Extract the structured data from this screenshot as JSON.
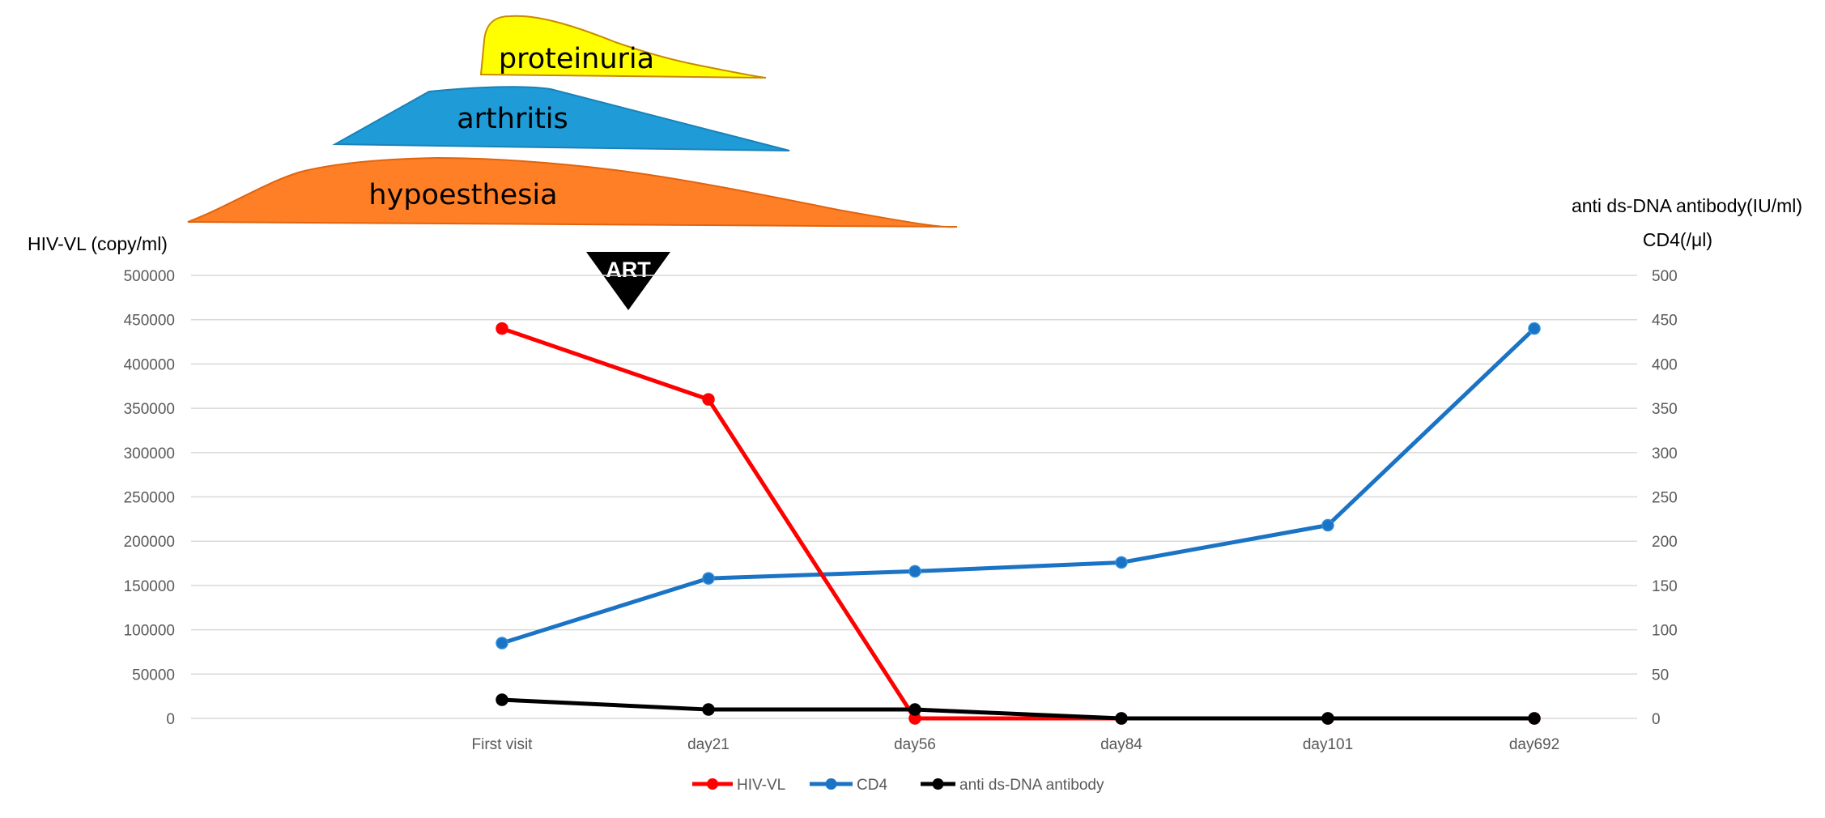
{
  "chart_data": {
    "type": "line",
    "categories": [
      "First visit",
      "day21",
      "day56",
      "day84",
      "day101",
      "day692"
    ],
    "left_axis": {
      "label": "HIV-VL (copy/ml)",
      "ylim": [
        0,
        500000
      ],
      "ticks": [
        "0",
        "50000",
        "100000",
        "150000",
        "200000",
        "250000",
        "300000",
        "350000",
        "400000",
        "450000",
        "500000"
      ]
    },
    "right_axis": {
      "label_line1": "anti ds-DNA antibody(IU/ml)",
      "label_line2": "CD4(/μl)",
      "ylim": [
        0,
        500
      ],
      "ticks": [
        "0",
        "50",
        "100",
        "150",
        "200",
        "250",
        "300",
        "350",
        "400",
        "450",
        "500"
      ]
    },
    "series": [
      {
        "name": "HIV-VL",
        "axis": "left",
        "color": "#ff0000",
        "values": [
          440000,
          360000,
          0,
          0,
          0,
          0
        ]
      },
      {
        "name": "CD4",
        "axis": "right",
        "color": "#1a73c4",
        "values": [
          85,
          158,
          166,
          176,
          218,
          440
        ]
      },
      {
        "name": "anti ds-DNA antibody",
        "axis": "right",
        "color": "#000000",
        "values": [
          21,
          10,
          10,
          0,
          0,
          0
        ]
      }
    ],
    "grid": true,
    "legend_position": "bottom-center",
    "annotations": {
      "art_marker": {
        "label": "ART",
        "color": "#000000"
      },
      "symptoms": [
        {
          "label": "proteinuria",
          "color": "#ffff00"
        },
        {
          "label": "arthritis",
          "color": "#1f9bd7"
        },
        {
          "label": "hypoesthesia",
          "color": "#ff7f27"
        }
      ]
    }
  }
}
